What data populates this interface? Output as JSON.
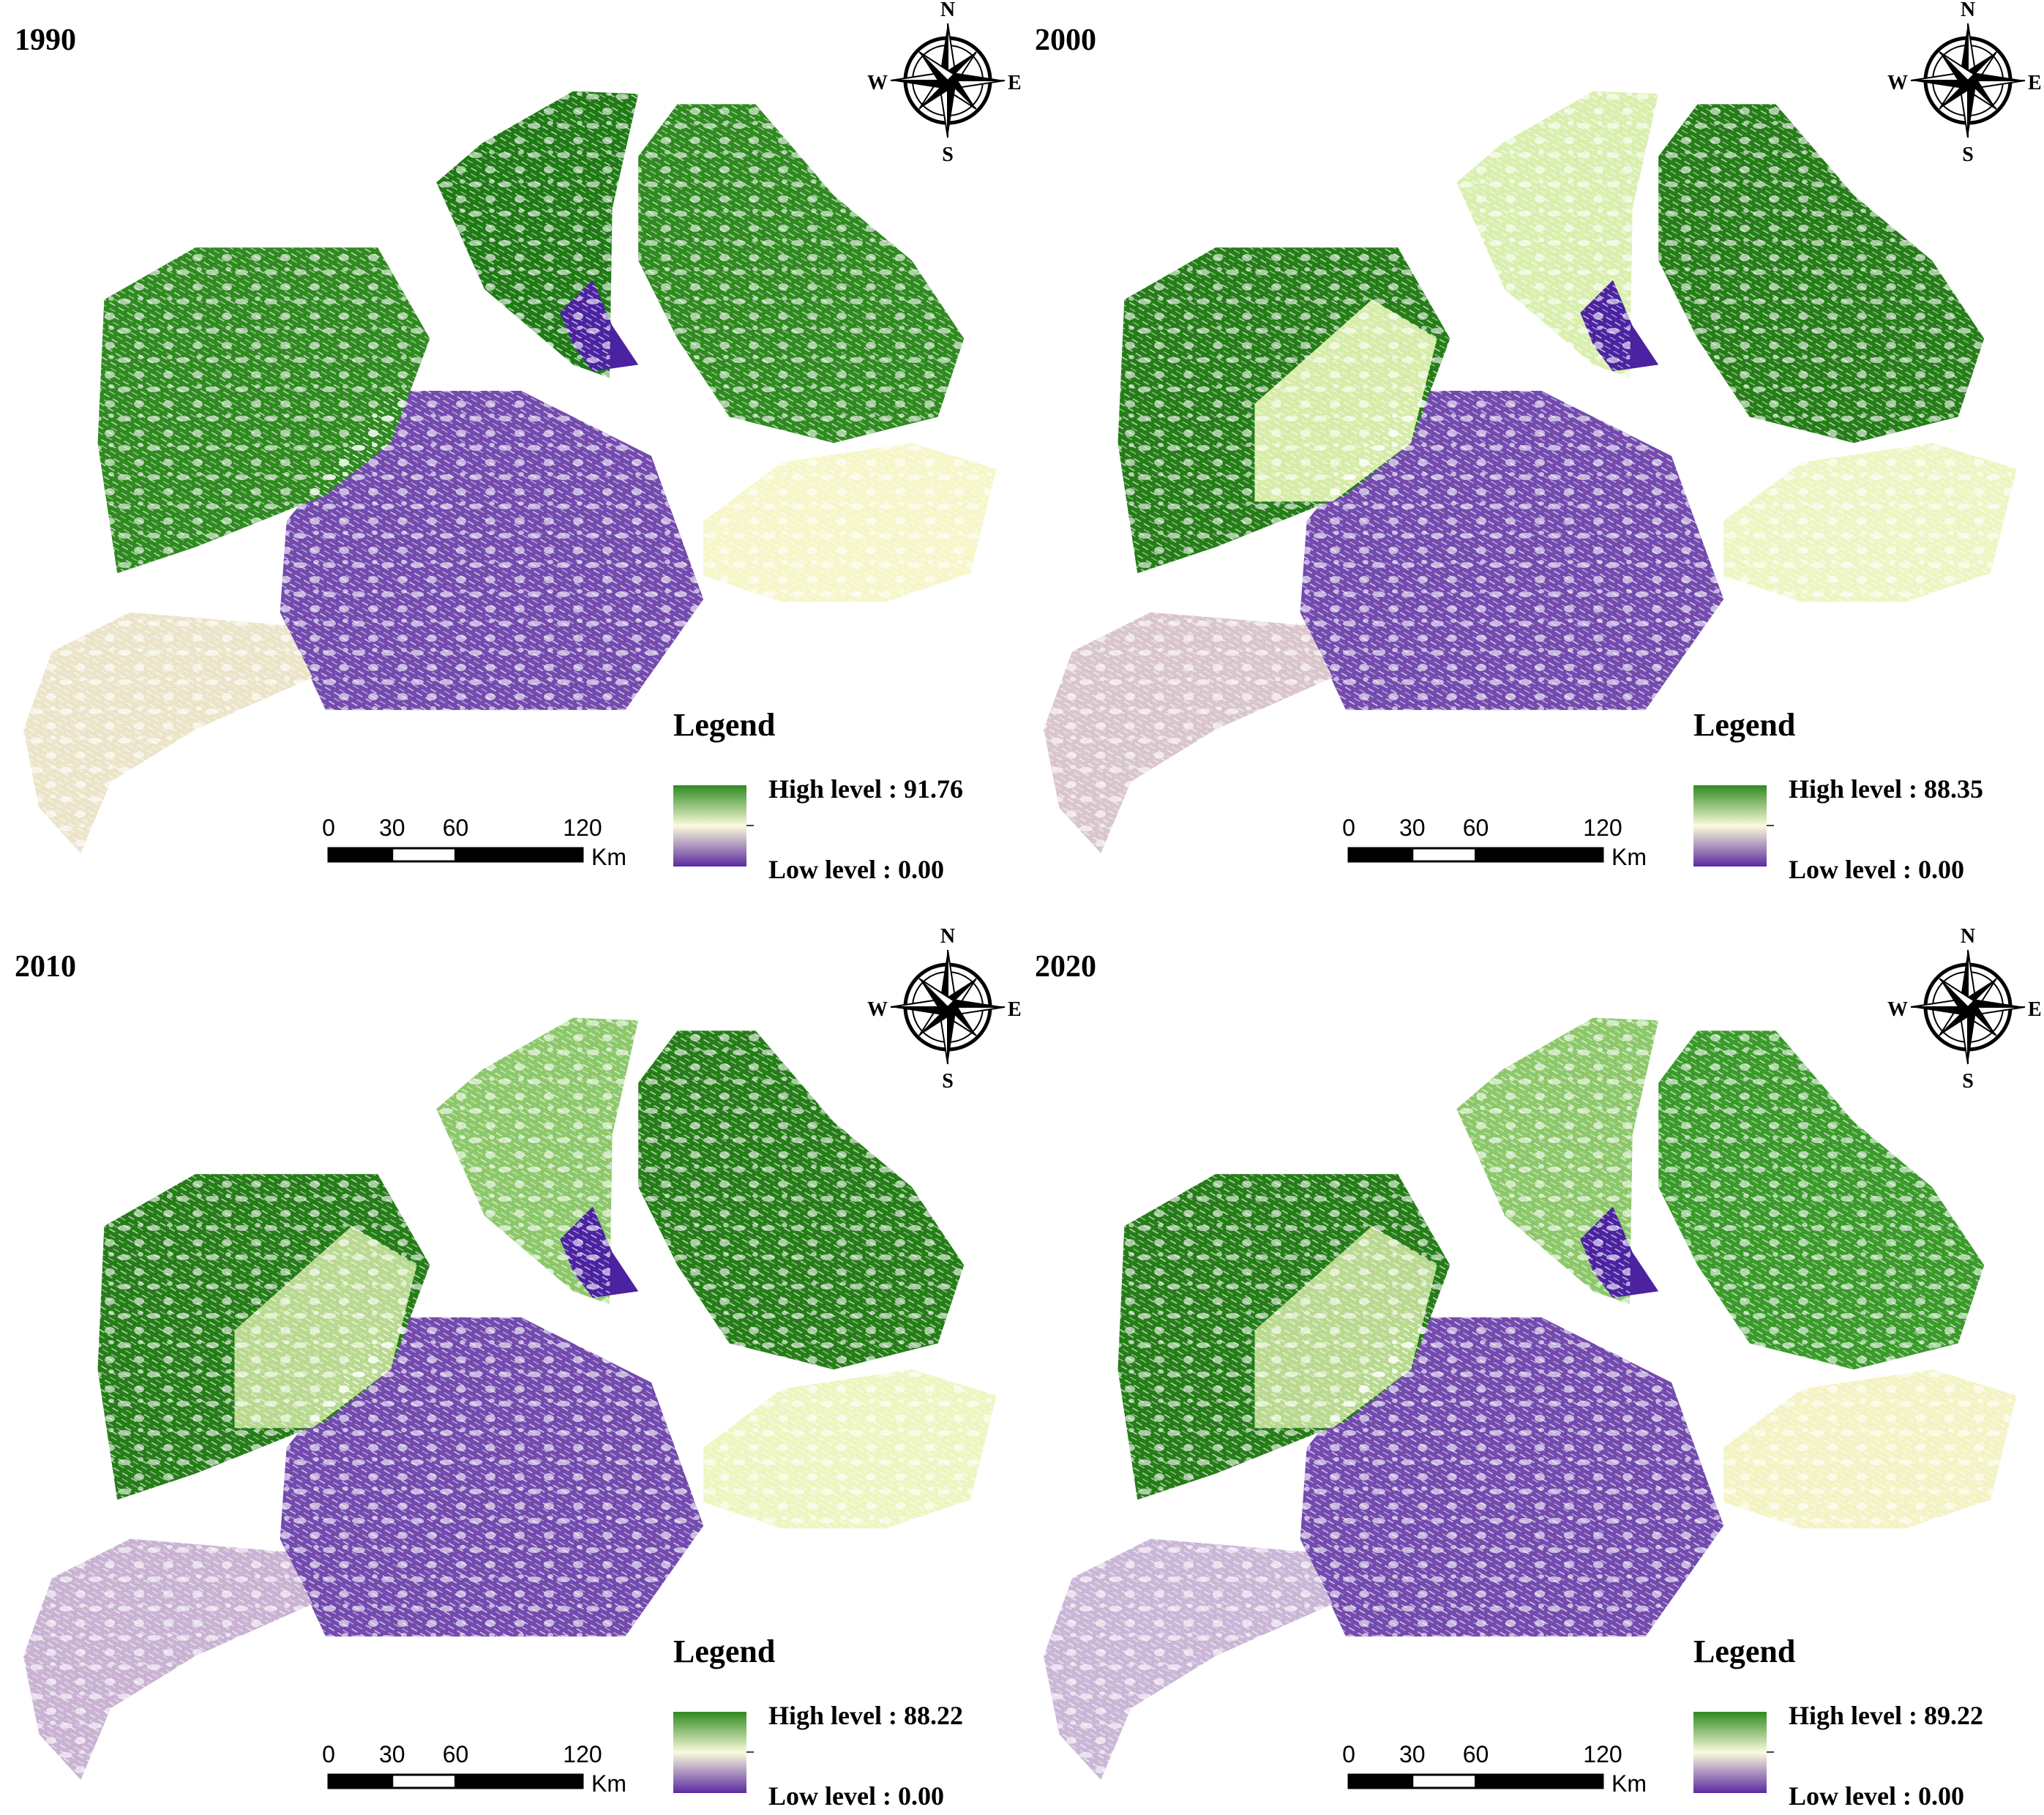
{
  "panels": [
    {
      "year": "1990",
      "legend": {
        "title": "Legend",
        "high": "High level : 91.76",
        "low": "Low level : 0.00"
      },
      "scale_bar": {
        "labels": [
          0,
          30,
          60,
          120
        ],
        "unit": "Km"
      },
      "compass": {
        "n": "N",
        "w": "W",
        "e": "E",
        "s": "S"
      }
    },
    {
      "year": "2000",
      "legend": {
        "title": "Legend",
        "high": "High level : 88.35",
        "low": "Low level : 0.00"
      },
      "scale_bar": {
        "labels": [
          0,
          30,
          60,
          120
        ],
        "unit": "Km"
      },
      "compass": {
        "n": "N",
        "w": "W",
        "e": "E",
        "s": "S"
      }
    },
    {
      "year": "2010",
      "legend": {
        "title": "Legend",
        "high": "High level : 88.22",
        "low": "Low level : 0.00"
      },
      "scale_bar": {
        "labels": [
          0,
          30,
          60,
          120
        ],
        "unit": "Km"
      },
      "compass": {
        "n": "N",
        "w": "W",
        "e": "E",
        "s": "S"
      }
    },
    {
      "year": "2020",
      "legend": {
        "title": "Legend",
        "high": "High level : 89.22",
        "low": "Low level : 0.00"
      },
      "scale_bar": {
        "labels": [
          0,
          30,
          60,
          120
        ],
        "unit": "Km"
      },
      "compass": {
        "n": "N",
        "w": "W",
        "e": "E",
        "s": "S"
      }
    }
  ]
}
